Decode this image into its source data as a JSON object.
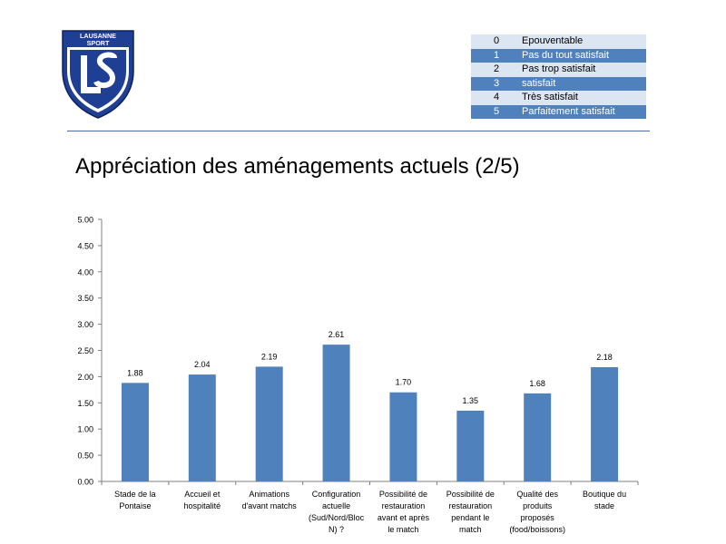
{
  "logo": {
    "text": "LAUSANNE SPORT"
  },
  "legend": [
    {
      "value": "0",
      "label": "Epouventable"
    },
    {
      "value": "1",
      "label": "Pas du tout satisfait"
    },
    {
      "value": "2",
      "label": "Pas trop satisfait"
    },
    {
      "value": "3",
      "label": "satisfait"
    },
    {
      "value": "4",
      "label": "Très satisfait"
    },
    {
      "value": "5",
      "label": "Parfaitement satisfait"
    }
  ],
  "chart_data": {
    "type": "bar",
    "title": "Appréciation des aménagements actuels (2/5)",
    "categories": [
      [
        "Stade de la",
        "Pontaise"
      ],
      [
        "Accueil et",
        "hospitalité"
      ],
      [
        "Animations",
        "d'avant matchs"
      ],
      [
        "Configuration",
        "actuelle",
        "(Sud/Nord/Bloc",
        "N) ?"
      ],
      [
        "Possibilité de",
        "restauration",
        "avant et après",
        "le match"
      ],
      [
        "Possibilité de",
        "restauration",
        "pendant le",
        "match"
      ],
      [
        "Qualité des",
        "produits",
        "proposés",
        "(food/boissons)"
      ],
      [
        "Boutique du",
        "stade"
      ]
    ],
    "values": [
      1.88,
      2.04,
      2.19,
      2.61,
      1.7,
      1.35,
      1.68,
      2.18
    ],
    "value_labels": [
      "1.88",
      "2.04",
      "2.19",
      "2.61",
      "1.70",
      "1.35",
      "1.68",
      "2.18"
    ],
    "yticks": [
      "0.00",
      "0.50",
      "1.00",
      "1.50",
      "2.00",
      "2.50",
      "3.00",
      "3.50",
      "4.00",
      "4.50",
      "5.00"
    ],
    "ylim": [
      0,
      5
    ],
    "bar_color": "#4f81bd",
    "grid": false,
    "xlabel": "",
    "ylabel": ""
  }
}
